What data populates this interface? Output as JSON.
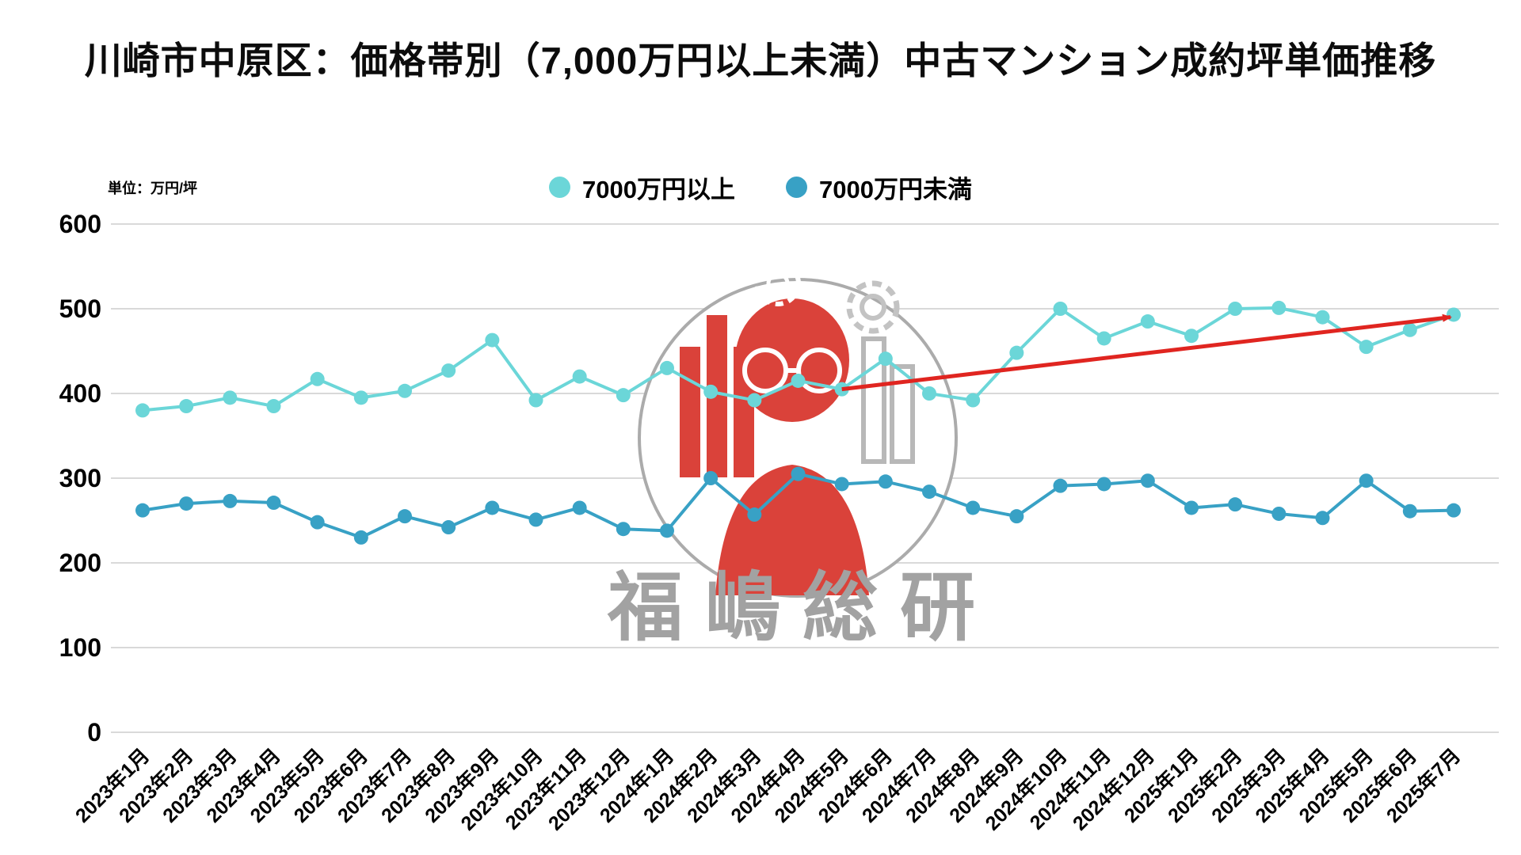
{
  "title": "川崎市中原区：価格帯別（7,000万円以上未満）中古マンション成約坪単価推移",
  "unit_label": "単位：万円/坪",
  "watermark": {
    "text": "福嶋総研"
  },
  "legend": [
    {
      "label": "7000万円以上",
      "color": "#6bd6d8"
    },
    {
      "label": "7000万円未満",
      "color": "#38a1c5"
    }
  ],
  "chart_data": {
    "type": "line",
    "title": "川崎市中原区：価格帯別（7,000万円以上未満）中古マンション成約坪単価推移",
    "xlabel": "",
    "ylabel": "万円/坪",
    "ylim": [
      0,
      600
    ],
    "yticks": [
      0,
      100,
      200,
      300,
      400,
      500,
      600
    ],
    "grid": true,
    "legend_position": "top",
    "categories": [
      "2023年1月",
      "2023年2月",
      "2023年3月",
      "2023年4月",
      "2023年5月",
      "2023年6月",
      "2023年7月",
      "2023年8月",
      "2023年9月",
      "2023年10月",
      "2023年11月",
      "2023年12月",
      "2024年1月",
      "2024年2月",
      "2024年3月",
      "2024年4月",
      "2024年5月",
      "2024年6月",
      "2024年7月",
      "2024年8月",
      "2024年9月",
      "2024年10月",
      "2024年11月",
      "2024年12月",
      "2025年1月",
      "2025年2月",
      "2025年3月",
      "2025年4月",
      "2025年5月",
      "2025年6月",
      "2025年7月"
    ],
    "series": [
      {
        "name": "7000万円以上",
        "color": "#6bd6d8",
        "values": [
          380,
          385,
          395,
          385,
          417,
          395,
          403,
          427,
          463,
          392,
          420,
          398,
          430,
          402,
          392,
          415,
          405,
          441,
          400,
          392,
          448,
          500,
          465,
          485,
          468,
          500,
          501,
          490,
          455,
          475,
          493
        ]
      },
      {
        "name": "7000万円未満",
        "color": "#38a1c5",
        "values": [
          262,
          270,
          273,
          271,
          248,
          230,
          255,
          242,
          265,
          251,
          265,
          240,
          238,
          300,
          257,
          305,
          293,
          296,
          284,
          265,
          255,
          291,
          293,
          297,
          265,
          269,
          258,
          253,
          297,
          261,
          262
        ]
      }
    ],
    "annotation": {
      "type": "arrow",
      "color": "#e02520",
      "from": {
        "category": "2024年5月",
        "value": 405
      },
      "to": {
        "category": "2025年7月",
        "value": 492
      }
    }
  }
}
